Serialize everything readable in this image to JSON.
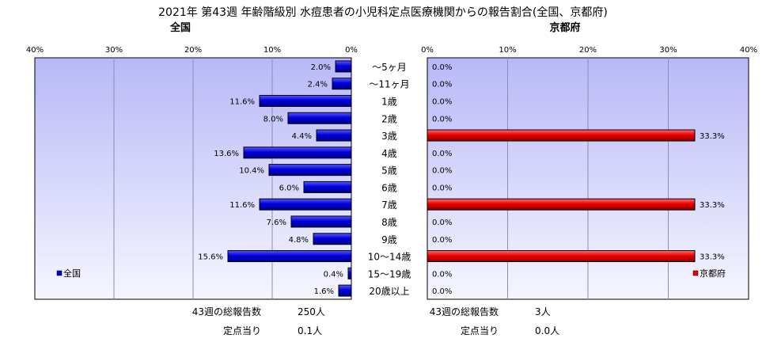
{
  "chart_data": {
    "type": "bar",
    "title": "2021年 第43週 年齢階級別 水痘患者の小児科定点医療機関からの報告割合(全国、京都府)",
    "categories": [
      "～5ヶ月",
      "～11ヶ月",
      "1歳",
      "2歳",
      "3歳",
      "4歳",
      "5歳",
      "6歳",
      "7歳",
      "8歳",
      "9歳",
      "10～14歳",
      "15～19歳",
      "20歳以上"
    ],
    "axis_ticks": [
      "40%",
      "30%",
      "20%",
      "10%",
      "0%",
      "0%",
      "10%",
      "20%",
      "30%",
      "40%"
    ],
    "xlim": [
      0,
      40
    ],
    "panels": [
      {
        "key": "national",
        "title": "全国",
        "legend": "全国",
        "legend_position": "bottom-left",
        "color": "#0000cc",
        "values": [
          2.0,
          2.4,
          11.6,
          8.0,
          4.4,
          13.6,
          10.4,
          6.0,
          11.6,
          7.6,
          4.8,
          15.6,
          0.4,
          1.6
        ],
        "data_labels": [
          "2.0%",
          "2.4%",
          "11.6%",
          "8.0%",
          "4.4%",
          "13.6%",
          "10.4%",
          "6.0%",
          "11.6%",
          "7.6%",
          "4.8%",
          "15.6%",
          "0.4%",
          "1.6%"
        ],
        "total_label": "43週の総報告数",
        "total_value": "250人",
        "per_label": "定点当り",
        "per_value": "0.1人"
      },
      {
        "key": "kyoto",
        "title": "京都府",
        "legend": "京都府",
        "legend_position": "bottom-right",
        "color": "#ee0000",
        "values": [
          0.0,
          0.0,
          0.0,
          0.0,
          33.3,
          0.0,
          0.0,
          0.0,
          33.3,
          0.0,
          0.0,
          33.3,
          0.0,
          0.0
        ],
        "data_labels": [
          "0.0%",
          "0.0%",
          "0.0%",
          "0.0%",
          "33.3%",
          "0.0%",
          "0.0%",
          "0.0%",
          "33.3%",
          "0.0%",
          "0.0%",
          "33.3%",
          "0.0%",
          "0.0%"
        ],
        "total_label": "43週の総報告数",
        "total_value": "3人",
        "per_label": "定点当り",
        "per_value": "0.0人"
      }
    ],
    "grid": true
  }
}
